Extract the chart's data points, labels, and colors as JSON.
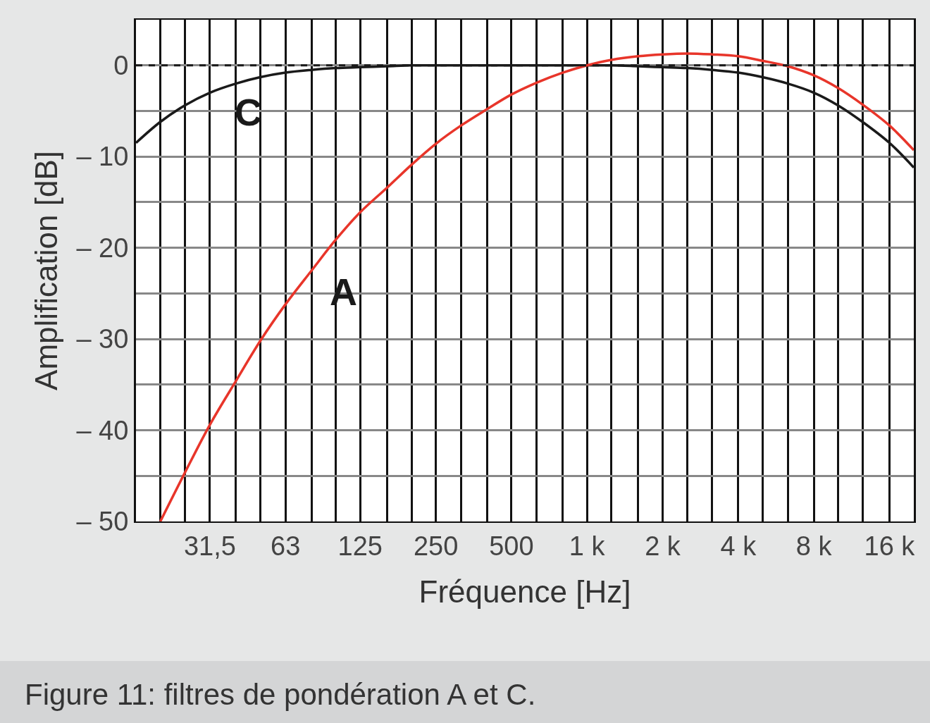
{
  "chart_data": {
    "type": "line",
    "xlabel": "Fréquence [Hz]",
    "ylabel": "Amplification [dB]",
    "log": "x",
    "grid": true,
    "legend": false,
    "marker": "none",
    "line_style": "solid",
    "xlim": [
      16,
      20000
    ],
    "xticks": [
      {
        "value": 16,
        "label": null
      },
      {
        "value": 20,
        "label": null
      },
      {
        "value": 25,
        "label": null
      },
      {
        "value": 31.5,
        "label": "31,5"
      },
      {
        "value": 40,
        "label": null
      },
      {
        "value": 50,
        "label": null
      },
      {
        "value": 63,
        "label": "63"
      },
      {
        "value": 80,
        "label": null
      },
      {
        "value": 100,
        "label": null
      },
      {
        "value": 125,
        "label": "125"
      },
      {
        "value": 160,
        "label": null
      },
      {
        "value": 200,
        "label": null
      },
      {
        "value": 250,
        "label": "250"
      },
      {
        "value": 315,
        "label": null
      },
      {
        "value": 400,
        "label": null
      },
      {
        "value": 500,
        "label": "500"
      },
      {
        "value": 630,
        "label": null
      },
      {
        "value": 800,
        "label": null
      },
      {
        "value": 1000,
        "label": "1 k"
      },
      {
        "value": 1250,
        "label": null
      },
      {
        "value": 1600,
        "label": null
      },
      {
        "value": 2000,
        "label": "2 k"
      },
      {
        "value": 2500,
        "label": null
      },
      {
        "value": 3150,
        "label": null
      },
      {
        "value": 4000,
        "label": "4 k"
      },
      {
        "value": 5000,
        "label": null
      },
      {
        "value": 6300,
        "label": null
      },
      {
        "value": 8000,
        "label": "8 k"
      },
      {
        "value": 10000,
        "label": null
      },
      {
        "value": 12500,
        "label": null
      },
      {
        "value": 16000,
        "label": "16 k"
      },
      {
        "value": 20000,
        "label": null
      }
    ],
    "ylim": [
      -50,
      5
    ],
    "yticks": [
      {
        "value": -50,
        "label": "– 50"
      },
      {
        "value": -45,
        "label": null
      },
      {
        "value": -40,
        "label": "– 40"
      },
      {
        "value": -35,
        "label": null
      },
      {
        "value": -30,
        "label": "– 30"
      },
      {
        "value": -25,
        "label": null
      },
      {
        "value": -20,
        "label": "– 20"
      },
      {
        "value": -15,
        "label": null
      },
      {
        "value": -10,
        "label": "– 10"
      },
      {
        "value": -5,
        "label": null
      },
      0
    ],
    "ref_lines": [
      {
        "axis": "y",
        "value": 0,
        "color": "#1a1a1a",
        "line_style": "dashed"
      }
    ],
    "series": [
      {
        "name": "C",
        "color": "#1a1a1a",
        "x": [
          16,
          20,
          25,
          31.5,
          40,
          50,
          63,
          80,
          100,
          125,
          160,
          200,
          250,
          315,
          400,
          500,
          630,
          800,
          1000,
          1250,
          1600,
          2000,
          2500,
          3150,
          4000,
          5000,
          6300,
          8000,
          10000,
          12500,
          16000,
          20000
        ],
        "values": [
          -8.5,
          -6.2,
          -4.4,
          -3.0,
          -2.0,
          -1.3,
          -0.8,
          -0.5,
          -0.3,
          -0.2,
          -0.1,
          0,
          0,
          0,
          0,
          0,
          0,
          0,
          0,
          0,
          -0.1,
          -0.2,
          -0.3,
          -0.5,
          -0.8,
          -1.3,
          -2.0,
          -3.0,
          -4.4,
          -6.2,
          -8.5,
          -11.2
        ]
      },
      {
        "name": "A",
        "color": "#e8352a",
        "x": [
          20,
          25,
          31.5,
          40,
          50,
          63,
          80,
          100,
          125,
          160,
          200,
          250,
          315,
          400,
          500,
          630,
          800,
          1000,
          1250,
          1600,
          2000,
          2500,
          3150,
          4000,
          5000,
          6300,
          8000,
          10000,
          12500,
          16000,
          20000
        ],
        "values": [
          -50,
          -44.7,
          -39.4,
          -34.6,
          -30.2,
          -26.2,
          -22.5,
          -19.1,
          -16.1,
          -13.4,
          -10.9,
          -8.6,
          -6.6,
          -4.8,
          -3.2,
          -1.9,
          -0.8,
          0,
          0.6,
          1.0,
          1.2,
          1.3,
          1.2,
          1.0,
          0.5,
          -0.1,
          -1.1,
          -2.5,
          -4.3,
          -6.6,
          -9.3
        ]
      }
    ],
    "annotations": [
      "Figure 11: filtres de pondération A et C."
    ]
  }
}
